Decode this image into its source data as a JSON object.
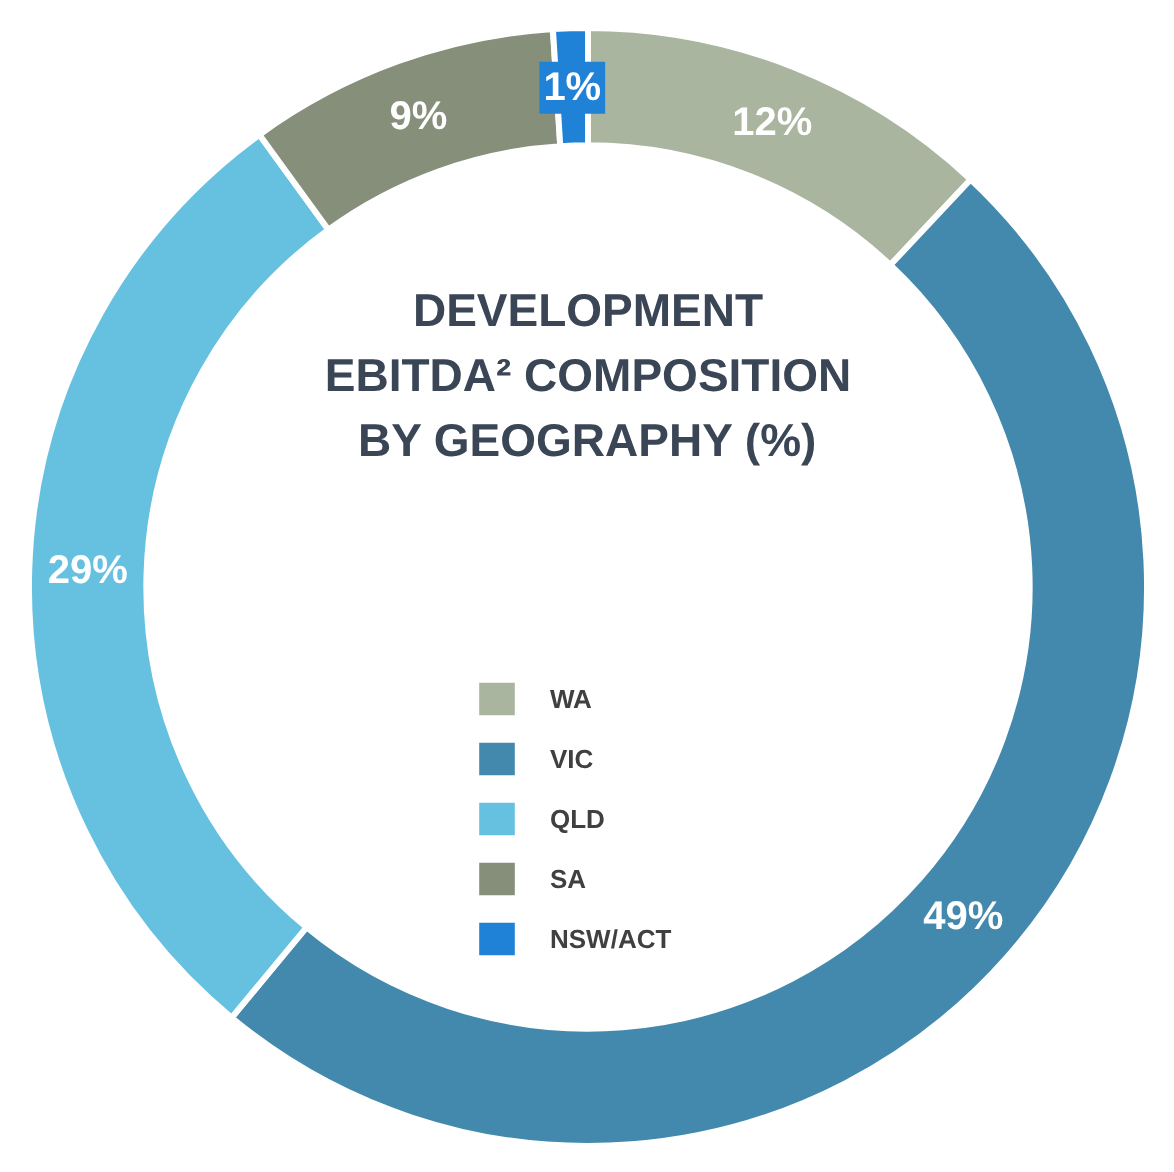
{
  "chart_data": {
    "type": "donut",
    "title": "DEVELOPMENT\nEBITDA² COMPOSITION\nBY GEOGRAPHY (%)",
    "categories": [
      "WA",
      "VIC",
      "QLD",
      "SA",
      "NSW/ACT"
    ],
    "values": [
      12,
      49,
      29,
      9,
      1
    ],
    "colors": [
      "#aab5a0",
      "#4289ad",
      "#66c1e0",
      "#868f7a",
      "#1f82d6"
    ],
    "value_labels": [
      "12%",
      "49%",
      "29%",
      "9%",
      "1%"
    ],
    "legend": "center"
  }
}
